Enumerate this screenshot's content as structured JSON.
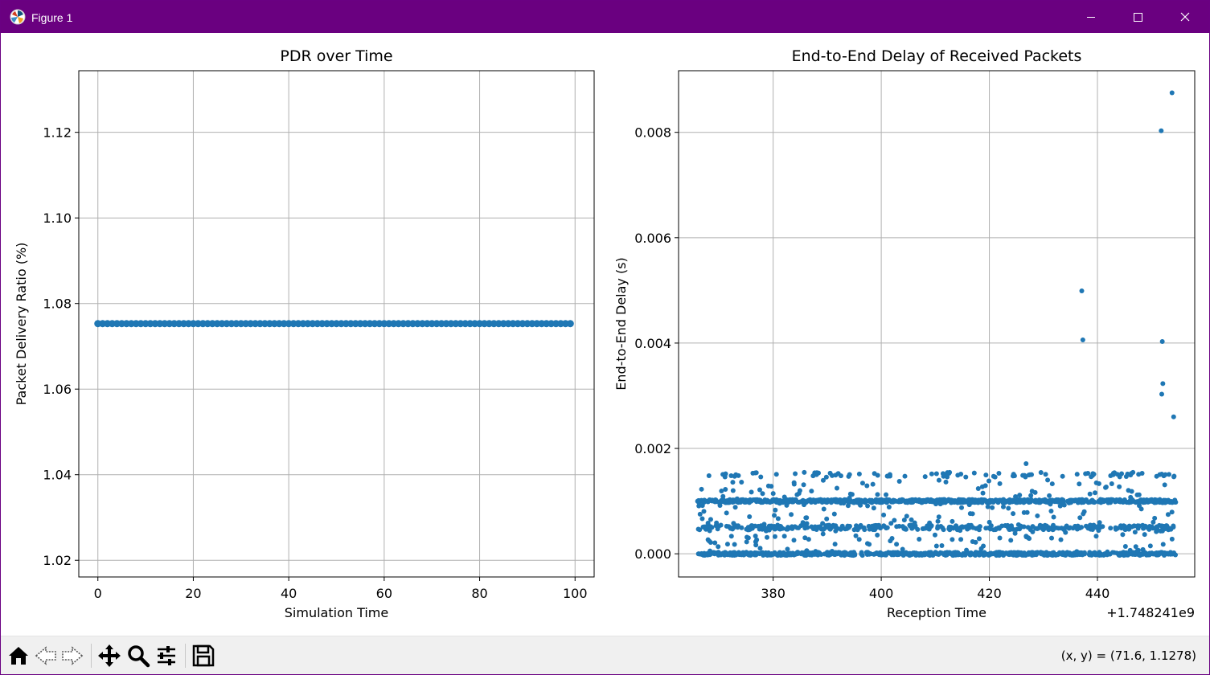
{
  "window": {
    "title": "Figure 1",
    "colors": {
      "titlebar": "#6a0080",
      "series": "#1f77b4"
    }
  },
  "toolbar": {
    "icons": [
      "home-icon",
      "back-arrow-icon",
      "forward-arrow-icon",
      "pan-move-icon",
      "zoom-magnifier-icon",
      "configure-subplots-icon",
      "save-disk-icon"
    ],
    "coords": "(x, y) = (71.6, 1.1278)"
  },
  "chart_data": [
    {
      "type": "scatter",
      "title": "PDR over Time",
      "xlabel": "Simulation Time",
      "ylabel": "Packet Delivery Ratio (%)",
      "xlim": [
        -4,
        104
      ],
      "ylim": [
        1.0161,
        1.1344
      ],
      "xticks": [
        0,
        20,
        40,
        60,
        80,
        100
      ],
      "xtick_labels": [
        "0",
        "20",
        "40",
        "60",
        "80",
        "100"
      ],
      "yticks": [
        1.02,
        1.04,
        1.06,
        1.08,
        1.1,
        1.12
      ],
      "ytick_labels": [
        "1.02",
        "1.04",
        "1.06",
        "1.08",
        "1.10",
        "1.12"
      ],
      "grid": true,
      "series": [
        {
          "x_start": 0,
          "x_end": 99,
          "x_step": 1,
          "y": 1.0753
        }
      ]
    },
    {
      "type": "scatter",
      "title": "End-to-End Delay of Received Packets",
      "xlabel": "Reception Time",
      "ylabel": "End-to-End Delay (s)",
      "offset_label": "+1.748241e9",
      "xlim": [
        362.5,
        458
      ],
      "ylim": [
        -0.00044,
        0.00917
      ],
      "xticks": [
        380,
        400,
        420,
        440
      ],
      "xtick_labels": [
        "380",
        "400",
        "420",
        "440"
      ],
      "yticks": [
        0.0,
        0.002,
        0.004,
        0.006,
        0.008
      ],
      "ytick_labels": [
        "0.000",
        "0.002",
        "0.004",
        "0.006",
        "0.008"
      ],
      "grid": true,
      "time_range": [
        366,
        454.5
      ],
      "bands": [
        {
          "y": 0.0,
          "density": "dense"
        },
        {
          "y": 0.0005,
          "density": "medium"
        },
        {
          "y": 0.001,
          "density": "dense"
        },
        {
          "y": 0.0015,
          "density": "sparse"
        }
      ],
      "outliers": [
        {
          "x": 437.1,
          "y": 0.00499
        },
        {
          "x": 437.3,
          "y": 0.00406
        },
        {
          "x": 451.8,
          "y": 0.00803
        },
        {
          "x": 453.8,
          "y": 0.00875
        },
        {
          "x": 452.0,
          "y": 0.00403
        },
        {
          "x": 452.1,
          "y": 0.00323
        },
        {
          "x": 451.9,
          "y": 0.00303
        },
        {
          "x": 454.1,
          "y": 0.0026
        },
        {
          "x": 426.8,
          "y": 0.00171
        }
      ]
    }
  ]
}
